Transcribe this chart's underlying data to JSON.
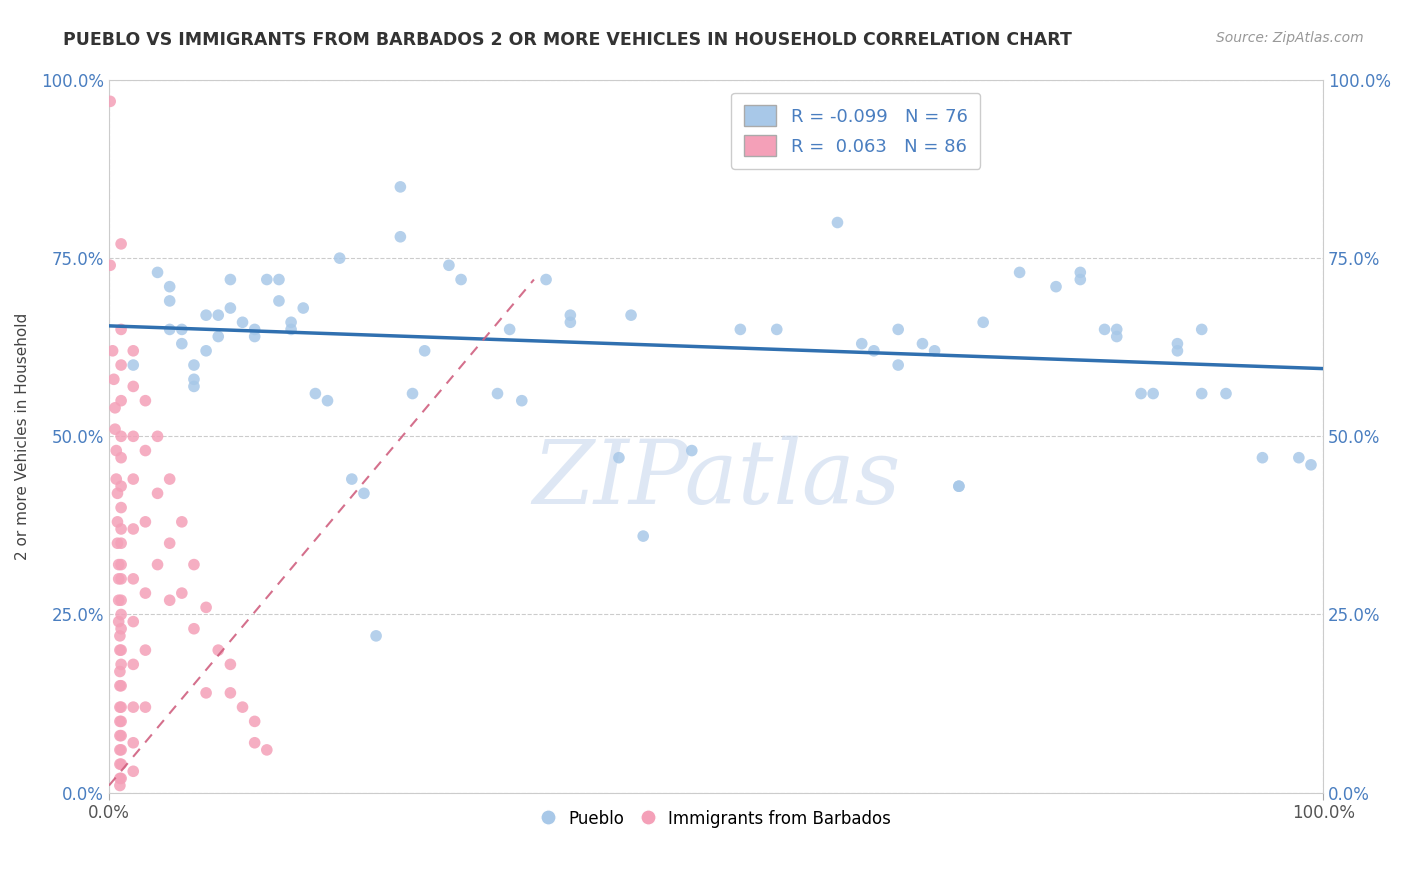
{
  "title": "PUEBLO VS IMMIGRANTS FROM BARBADOS 2 OR MORE VEHICLES IN HOUSEHOLD CORRELATION CHART",
  "source_text": "Source: ZipAtlas.com",
  "ylabel": "2 or more Vehicles in Household",
  "xmin": 0.0,
  "xmax": 1.0,
  "ymin": 0.0,
  "ymax": 1.0,
  "xtick_positions": [
    0.0,
    1.0
  ],
  "xtick_labels": [
    "0.0%",
    "100.0%"
  ],
  "ytick_values": [
    0.0,
    0.25,
    0.5,
    0.75,
    1.0
  ],
  "ytick_labels": [
    "0.0%",
    "25.0%",
    "50.0%",
    "75.0%",
    "100.0%"
  ],
  "legend1_r": "R = -0.099",
  "legend1_n": "N = 76",
  "legend2_r": "R =  0.063",
  "legend2_n": "N = 86",
  "legend_bottom_label1": "Pueblo",
  "legend_bottom_label2": "Immigrants from Barbados",
  "blue_color": "#a8c8e8",
  "pink_color": "#f4a0b8",
  "blue_line_color": "#3070b0",
  "pink_line_color": "#d06080",
  "watermark_text": "ZIPatlas",
  "blue_scatter": [
    [
      0.02,
      0.6
    ],
    [
      0.04,
      0.73
    ],
    [
      0.05,
      0.71
    ],
    [
      0.05,
      0.69
    ],
    [
      0.05,
      0.65
    ],
    [
      0.06,
      0.65
    ],
    [
      0.06,
      0.63
    ],
    [
      0.07,
      0.6
    ],
    [
      0.07,
      0.58
    ],
    [
      0.07,
      0.57
    ],
    [
      0.08,
      0.62
    ],
    [
      0.08,
      0.67
    ],
    [
      0.09,
      0.67
    ],
    [
      0.09,
      0.64
    ],
    [
      0.1,
      0.68
    ],
    [
      0.1,
      0.72
    ],
    [
      0.11,
      0.66
    ],
    [
      0.12,
      0.65
    ],
    [
      0.12,
      0.64
    ],
    [
      0.13,
      0.72
    ],
    [
      0.14,
      0.72
    ],
    [
      0.14,
      0.69
    ],
    [
      0.15,
      0.66
    ],
    [
      0.15,
      0.65
    ],
    [
      0.16,
      0.68
    ],
    [
      0.17,
      0.56
    ],
    [
      0.18,
      0.55
    ],
    [
      0.19,
      0.75
    ],
    [
      0.2,
      0.44
    ],
    [
      0.21,
      0.42
    ],
    [
      0.22,
      0.22
    ],
    [
      0.24,
      0.85
    ],
    [
      0.24,
      0.78
    ],
    [
      0.25,
      0.56
    ],
    [
      0.26,
      0.62
    ],
    [
      0.28,
      0.74
    ],
    [
      0.29,
      0.72
    ],
    [
      0.32,
      0.56
    ],
    [
      0.33,
      0.65
    ],
    [
      0.34,
      0.55
    ],
    [
      0.36,
      0.72
    ],
    [
      0.38,
      0.67
    ],
    [
      0.38,
      0.66
    ],
    [
      0.42,
      0.47
    ],
    [
      0.43,
      0.67
    ],
    [
      0.44,
      0.36
    ],
    [
      0.48,
      0.48
    ],
    [
      0.52,
      0.65
    ],
    [
      0.55,
      0.65
    ],
    [
      0.6,
      0.8
    ],
    [
      0.62,
      0.63
    ],
    [
      0.63,
      0.62
    ],
    [
      0.65,
      0.65
    ],
    [
      0.65,
      0.6
    ],
    [
      0.67,
      0.63
    ],
    [
      0.68,
      0.62
    ],
    [
      0.7,
      0.43
    ],
    [
      0.7,
      0.43
    ],
    [
      0.72,
      0.66
    ],
    [
      0.75,
      0.73
    ],
    [
      0.78,
      0.71
    ],
    [
      0.8,
      0.73
    ],
    [
      0.8,
      0.72
    ],
    [
      0.82,
      0.65
    ],
    [
      0.83,
      0.65
    ],
    [
      0.83,
      0.64
    ],
    [
      0.85,
      0.56
    ],
    [
      0.86,
      0.56
    ],
    [
      0.88,
      0.62
    ],
    [
      0.88,
      0.63
    ],
    [
      0.9,
      0.65
    ],
    [
      0.9,
      0.56
    ],
    [
      0.92,
      0.56
    ],
    [
      0.95,
      0.47
    ],
    [
      0.98,
      0.47
    ],
    [
      0.99,
      0.46
    ]
  ],
  "pink_scatter": [
    [
      0.001,
      0.97
    ],
    [
      0.001,
      0.74
    ],
    [
      0.003,
      0.62
    ],
    [
      0.004,
      0.58
    ],
    [
      0.005,
      0.54
    ],
    [
      0.005,
      0.51
    ],
    [
      0.006,
      0.48
    ],
    [
      0.006,
      0.44
    ],
    [
      0.007,
      0.42
    ],
    [
      0.007,
      0.38
    ],
    [
      0.007,
      0.35
    ],
    [
      0.008,
      0.32
    ],
    [
      0.008,
      0.3
    ],
    [
      0.008,
      0.27
    ],
    [
      0.008,
      0.24
    ],
    [
      0.009,
      0.22
    ],
    [
      0.009,
      0.2
    ],
    [
      0.009,
      0.17
    ],
    [
      0.009,
      0.15
    ],
    [
      0.009,
      0.12
    ],
    [
      0.009,
      0.1
    ],
    [
      0.009,
      0.08
    ],
    [
      0.009,
      0.06
    ],
    [
      0.009,
      0.04
    ],
    [
      0.009,
      0.02
    ],
    [
      0.009,
      0.01
    ],
    [
      0.01,
      0.77
    ],
    [
      0.01,
      0.65
    ],
    [
      0.01,
      0.6
    ],
    [
      0.01,
      0.55
    ],
    [
      0.01,
      0.5
    ],
    [
      0.01,
      0.47
    ],
    [
      0.01,
      0.43
    ],
    [
      0.01,
      0.4
    ],
    [
      0.01,
      0.37
    ],
    [
      0.01,
      0.35
    ],
    [
      0.01,
      0.32
    ],
    [
      0.01,
      0.3
    ],
    [
      0.01,
      0.27
    ],
    [
      0.01,
      0.25
    ],
    [
      0.01,
      0.23
    ],
    [
      0.01,
      0.2
    ],
    [
      0.01,
      0.18
    ],
    [
      0.01,
      0.15
    ],
    [
      0.01,
      0.12
    ],
    [
      0.01,
      0.1
    ],
    [
      0.01,
      0.08
    ],
    [
      0.01,
      0.06
    ],
    [
      0.01,
      0.04
    ],
    [
      0.01,
      0.02
    ],
    [
      0.02,
      0.62
    ],
    [
      0.02,
      0.57
    ],
    [
      0.02,
      0.5
    ],
    [
      0.02,
      0.44
    ],
    [
      0.02,
      0.37
    ],
    [
      0.02,
      0.3
    ],
    [
      0.02,
      0.24
    ],
    [
      0.02,
      0.18
    ],
    [
      0.02,
      0.12
    ],
    [
      0.02,
      0.07
    ],
    [
      0.02,
      0.03
    ],
    [
      0.03,
      0.55
    ],
    [
      0.03,
      0.48
    ],
    [
      0.03,
      0.38
    ],
    [
      0.03,
      0.28
    ],
    [
      0.03,
      0.2
    ],
    [
      0.03,
      0.12
    ],
    [
      0.04,
      0.5
    ],
    [
      0.04,
      0.42
    ],
    [
      0.04,
      0.32
    ],
    [
      0.05,
      0.44
    ],
    [
      0.05,
      0.35
    ],
    [
      0.05,
      0.27
    ],
    [
      0.06,
      0.38
    ],
    [
      0.06,
      0.28
    ],
    [
      0.07,
      0.32
    ],
    [
      0.07,
      0.23
    ],
    [
      0.08,
      0.26
    ],
    [
      0.08,
      0.14
    ],
    [
      0.09,
      0.2
    ],
    [
      0.1,
      0.18
    ],
    [
      0.1,
      0.14
    ],
    [
      0.11,
      0.12
    ],
    [
      0.12,
      0.1
    ],
    [
      0.12,
      0.07
    ],
    [
      0.13,
      0.06
    ]
  ],
  "blue_trend": [
    0.0,
    1.0,
    0.655,
    0.595
  ],
  "pink_trend": [
    0.0,
    0.35,
    0.01,
    0.72
  ]
}
